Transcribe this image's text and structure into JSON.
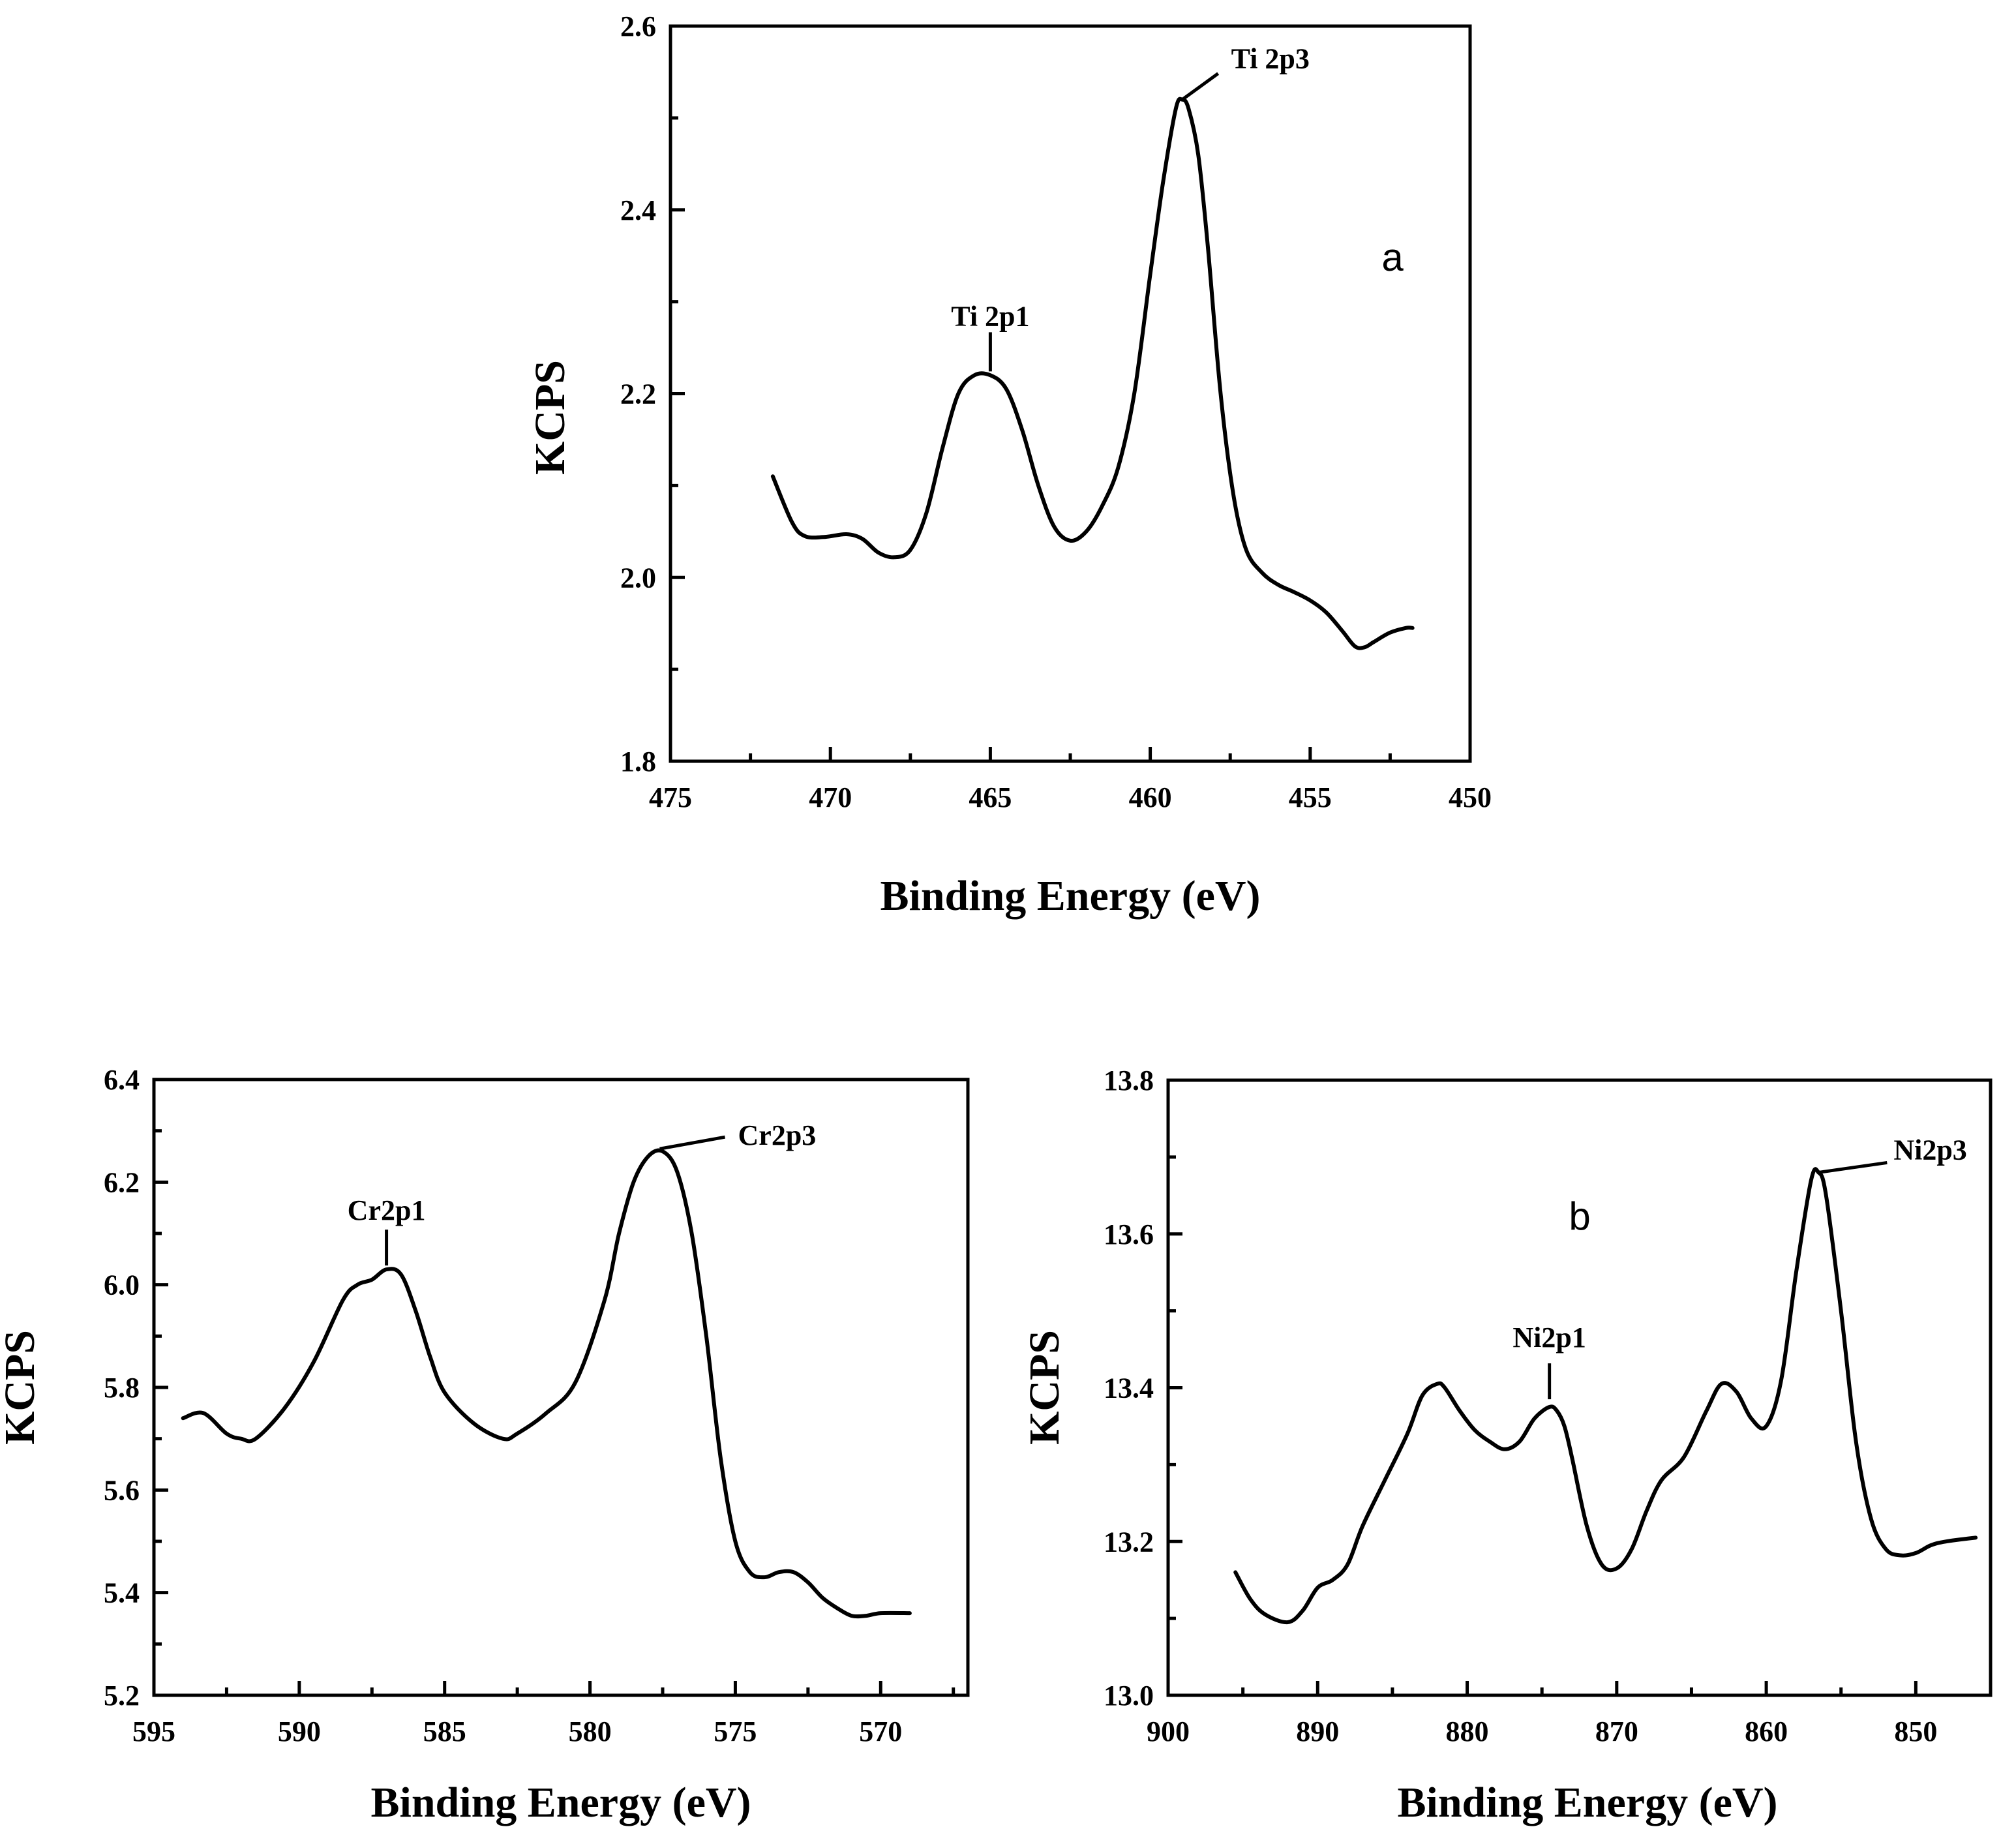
{
  "chart_data": [
    {
      "type": "line",
      "id": "ti",
      "panel_letter": "a",
      "xlabel": "Binding Energy (eV)",
      "ylabel": "KCPS",
      "xlim": [
        475,
        450
      ],
      "ylim": [
        1.8,
        2.6
      ],
      "xticks": [
        475,
        470,
        465,
        460,
        455,
        450
      ],
      "xtick_labels": [
        "475",
        "470",
        "465",
        "460",
        "455",
        "450"
      ],
      "yticks": [
        1.8,
        2.0,
        2.2,
        2.4,
        2.6
      ],
      "ytick_labels": [
        "1.8",
        "2.0",
        "2.2",
        "2.4",
        "2.6"
      ],
      "x": [
        471.8,
        471.2,
        470.8,
        470.2,
        469.5,
        469.0,
        468.5,
        468.0,
        467.5,
        467.0,
        466.5,
        466.0,
        465.5,
        465.0,
        464.5,
        464.0,
        463.5,
        463.0,
        462.5,
        462.0,
        461.5,
        461.0,
        460.5,
        460.0,
        459.6,
        459.2,
        459.0,
        458.8,
        458.5,
        458.2,
        457.8,
        457.4,
        457.0,
        456.5,
        456.0,
        455.5,
        455.0,
        454.5,
        454.0,
        453.6,
        453.3,
        453.0,
        452.5,
        452.0,
        451.8
      ],
      "y": [
        2.11,
        2.06,
        2.045,
        2.044,
        2.047,
        2.042,
        2.027,
        2.022,
        2.03,
        2.07,
        2.14,
        2.2,
        2.22,
        2.22,
        2.205,
        2.16,
        2.1,
        2.055,
        2.04,
        2.05,
        2.078,
        2.12,
        2.2,
        2.33,
        2.43,
        2.51,
        2.52,
        2.51,
        2.46,
        2.36,
        2.2,
        2.09,
        2.03,
        2.005,
        1.992,
        1.984,
        1.975,
        1.962,
        1.942,
        1.925,
        1.924,
        1.93,
        1.94,
        1.945,
        1.945
      ],
      "annotations": [
        {
          "text": "Ti 2p3",
          "x": 459.0,
          "y": 2.52,
          "style": "angled"
        },
        {
          "text": "Ti 2p1",
          "x": 465.0,
          "y": 2.22,
          "style": "vertical"
        }
      ]
    },
    {
      "type": "line",
      "id": "cr",
      "panel_letter": "",
      "xlabel": "Binding Energy (eV)",
      "ylabel": "KCPS",
      "xlim": [
        595,
        567
      ],
      "ylim": [
        5.2,
        6.4
      ],
      "xticks": [
        595,
        590,
        585,
        580,
        575,
        570
      ],
      "xtick_labels": [
        "595",
        "590",
        "585",
        "580",
        "575",
        "570"
      ],
      "yticks": [
        5.2,
        5.4,
        5.6,
        5.8,
        6.0,
        6.2,
        6.4
      ],
      "ytick_labels": [
        "5.2",
        "5.4",
        "5.6",
        "5.8",
        "6.0",
        "6.2",
        "6.4"
      ],
      "x": [
        594.0,
        593.3,
        592.5,
        592.0,
        591.5,
        590.5,
        589.5,
        588.5,
        588.0,
        587.5,
        587.0,
        586.5,
        586.0,
        585.5,
        585.0,
        584.0,
        583.0,
        582.5,
        581.5,
        580.5,
        579.5,
        579.0,
        578.5,
        578.0,
        577.5,
        577.0,
        576.5,
        576.0,
        575.5,
        575.0,
        574.5,
        574.0,
        573.5,
        573.0,
        572.5,
        572.0,
        571.5,
        571.0,
        570.5,
        570.0,
        569.0
      ],
      "y": [
        5.74,
        5.75,
        5.71,
        5.7,
        5.7,
        5.76,
        5.85,
        5.97,
        6.0,
        6.01,
        6.03,
        6.02,
        5.95,
        5.86,
        5.79,
        5.73,
        5.7,
        5.71,
        5.75,
        5.81,
        5.97,
        6.1,
        6.2,
        6.25,
        6.26,
        6.22,
        6.1,
        5.9,
        5.66,
        5.5,
        5.44,
        5.43,
        5.44,
        5.44,
        5.42,
        5.39,
        5.37,
        5.355,
        5.355,
        5.36,
        5.36
      ],
      "annotations": [
        {
          "text": "Cr2p3",
          "x": 577.6,
          "y": 6.265,
          "style": "angled"
        },
        {
          "text": "Cr2p1",
          "x": 587.0,
          "y": 6.03,
          "style": "vertical"
        }
      ]
    },
    {
      "type": "line",
      "id": "ni",
      "panel_letter": "b",
      "xlabel": "Binding Energy (eV)",
      "ylabel": "KCPS",
      "xlim": [
        900,
        845
      ],
      "ylim": [
        13.0,
        13.8
      ],
      "xticks": [
        900,
        890,
        880,
        870,
        860,
        850
      ],
      "xtick_labels": [
        "900",
        "890",
        "880",
        "870",
        "860",
        "850"
      ],
      "yticks": [
        13.0,
        13.2,
        13.4,
        13.6,
        13.8
      ],
      "ytick_labels": [
        "13.0",
        "13.2",
        "13.4",
        "13.6",
        "13.8"
      ],
      "x": [
        895.5,
        894.5,
        893.5,
        892.0,
        891.0,
        890.0,
        889.0,
        888.0,
        887.0,
        885.5,
        884.0,
        883.0,
        882.0,
        881.5,
        880.5,
        879.5,
        878.5,
        877.5,
        876.5,
        875.5,
        874.5,
        874.0,
        873.5,
        873.0,
        872.0,
        871.0,
        870.0,
        869.0,
        868.0,
        867.0,
        865.5,
        864.0,
        863.0,
        862.0,
        861.0,
        860.0,
        859.0,
        858.0,
        857.0,
        856.5,
        856.0,
        855.0,
        854.0,
        853.0,
        852.0,
        851.0,
        850.0,
        849.0,
        848.0,
        846.0
      ],
      "y": [
        13.16,
        13.125,
        13.105,
        13.095,
        13.11,
        13.14,
        13.15,
        13.17,
        13.22,
        13.28,
        13.34,
        13.39,
        13.405,
        13.4,
        13.37,
        13.345,
        13.33,
        13.32,
        13.33,
        13.36,
        13.375,
        13.37,
        13.35,
        13.31,
        13.22,
        13.17,
        13.165,
        13.19,
        13.24,
        13.28,
        13.31,
        13.37,
        13.405,
        13.395,
        13.36,
        13.35,
        13.41,
        13.55,
        13.67,
        13.68,
        13.65,
        13.5,
        13.33,
        13.23,
        13.19,
        13.182,
        13.185,
        13.195,
        13.2,
        13.205
      ],
      "annotations": [
        {
          "text": "Ni2p3",
          "x": 856.5,
          "y": 13.68,
          "style": "angled"
        },
        {
          "text": "Ni2p1",
          "x": 874.5,
          "y": 13.38,
          "style": "vertical"
        }
      ]
    }
  ]
}
